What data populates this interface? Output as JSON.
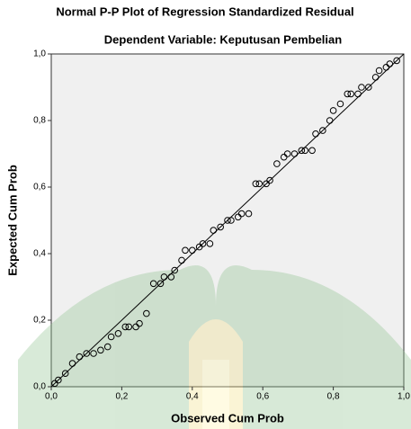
{
  "chart_data": {
    "type": "scatter",
    "title": "Normal P-P Plot of Regression Standardized Residual",
    "subtitle": "Dependent Variable: Keputusan Pembelian",
    "x_label": "Observed Cum Prob",
    "y_label": "Expected Cum Prob",
    "x": [
      0.01,
      0.02,
      0.04,
      0.06,
      0.08,
      0.1,
      0.12,
      0.14,
      0.16,
      0.17,
      0.19,
      0.21,
      0.22,
      0.24,
      0.25,
      0.27,
      0.29,
      0.31,
      0.32,
      0.34,
      0.35,
      0.37,
      0.38,
      0.4,
      0.42,
      0.43,
      0.45,
      0.46,
      0.48,
      0.5,
      0.51,
      0.53,
      0.54,
      0.56,
      0.58,
      0.59,
      0.61,
      0.62,
      0.64,
      0.66,
      0.67,
      0.69,
      0.71,
      0.72,
      0.74,
      0.75,
      0.77,
      0.79,
      0.8,
      0.82,
      0.84,
      0.85,
      0.87,
      0.88,
      0.9,
      0.92,
      0.93,
      0.95,
      0.96,
      0.98
    ],
    "values": [
      0.01,
      0.02,
      0.04,
      0.07,
      0.09,
      0.1,
      0.1,
      0.11,
      0.12,
      0.15,
      0.16,
      0.18,
      0.18,
      0.18,
      0.19,
      0.22,
      0.31,
      0.31,
      0.33,
      0.33,
      0.35,
      0.38,
      0.41,
      0.41,
      0.42,
      0.43,
      0.43,
      0.47,
      0.48,
      0.5,
      0.5,
      0.51,
      0.52,
      0.52,
      0.61,
      0.61,
      0.61,
      0.62,
      0.67,
      0.69,
      0.7,
      0.7,
      0.71,
      0.71,
      0.71,
      0.76,
      0.77,
      0.8,
      0.83,
      0.85,
      0.88,
      0.88,
      0.88,
      0.9,
      0.9,
      0.93,
      0.95,
      0.96,
      0.97,
      0.98
    ],
    "xlim": [
      0,
      1
    ],
    "ylim": [
      0,
      1
    ],
    "xticks": [
      {
        "value": 0,
        "label": "0,0"
      },
      {
        "value": 0.2,
        "label": "0,2"
      },
      {
        "value": 0.4,
        "label": "0,4"
      },
      {
        "value": 0.6,
        "label": "0,6"
      },
      {
        "value": 0.8,
        "label": "0,8"
      },
      {
        "value": 1,
        "label": "1,0"
      }
    ],
    "yticks": [
      {
        "value": 0,
        "label": "0,0"
      },
      {
        "value": 0.2,
        "label": "0,2"
      },
      {
        "value": 0.4,
        "label": "0,4"
      },
      {
        "value": 0.6,
        "label": "0,6"
      },
      {
        "value": 0.8,
        "label": "0,8"
      },
      {
        "value": 1,
        "label": "1,0"
      }
    ],
    "reference_line": true
  }
}
